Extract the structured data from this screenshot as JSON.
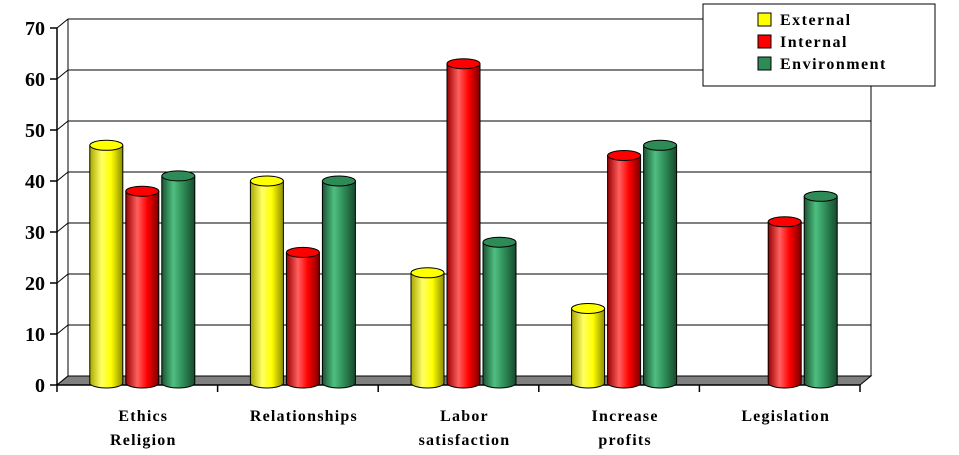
{
  "chart_data": {
    "type": "bar",
    "categories": [
      [
        "Ethics",
        "Religion"
      ],
      [
        "Relationships"
      ],
      [
        "Labor",
        "satisfaction"
      ],
      [
        "Increase",
        "profits"
      ],
      [
        "Legislation"
      ]
    ],
    "series": [
      {
        "name": "External",
        "color": "#ffff00",
        "values": [
          47,
          40,
          22,
          15,
          null
        ]
      },
      {
        "name": "Internal",
        "color": "#ff0000",
        "values": [
          38,
          26,
          63,
          45,
          32
        ]
      },
      {
        "name": "Environment",
        "color": "#2e8b57",
        "values": [
          41,
          40,
          28,
          47,
          37
        ]
      }
    ],
    "ylim": [
      0,
      70
    ],
    "yticks": [
      0,
      10,
      20,
      30,
      40,
      50,
      60,
      70
    ],
    "grid": true,
    "legend_position": "top-right",
    "style": "3d-cylinder"
  }
}
